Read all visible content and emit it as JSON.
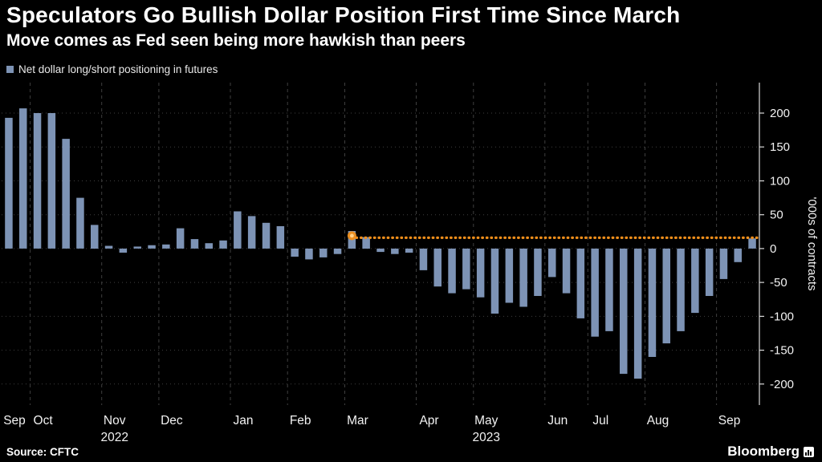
{
  "header": {
    "title": "Speculators Go Bullish Dollar Position First Time Since March",
    "subtitle": "Move comes as Fed seen being more hawkish than peers"
  },
  "legend": {
    "label": "Net dollar long/short positioning in futures",
    "swatch_color": "#7d93b5"
  },
  "chart_data": {
    "type": "bar",
    "title": "Speculators Go Bullish Dollar Position First Time Since March",
    "subtitle": "Move comes as Fed seen being more hawkish than peers",
    "series_label": "Net dollar long/short positioning in futures",
    "unit_label": "'000s of contracts",
    "ylim": [
      -231,
      245
    ],
    "yticks": [
      200,
      150,
      100,
      50,
      0,
      -50,
      -100,
      -150,
      -200
    ],
    "bar_color": "#7d93b5",
    "grid_color": "#3f3f3f",
    "axis_color": "#d9d9d9",
    "grid": true,
    "legend_position": "top-left",
    "values": [
      193,
      207,
      200,
      200,
      162,
      75,
      35,
      4,
      -6,
      3,
      5,
      6,
      30,
      14,
      8,
      12,
      55,
      48,
      38,
      33,
      -12,
      -16,
      -13,
      -8,
      26,
      17,
      -5,
      -8,
      -6,
      -32,
      -56,
      -66,
      -60,
      -72,
      -96,
      -80,
      -86,
      -70,
      -42,
      -66,
      -103,
      -130,
      -122,
      -185,
      -192,
      -160,
      -140,
      -122,
      -95,
      -70,
      -45,
      -20,
      15
    ],
    "bar_width": 9.5,
    "months": [
      {
        "label": "Sep",
        "start": 0
      },
      {
        "label": "Oct",
        "start": 2
      },
      {
        "label": "Nov",
        "start": 7,
        "year": "2022"
      },
      {
        "label": "Dec",
        "start": 11
      },
      {
        "label": "Jan",
        "start": 16
      },
      {
        "label": "Feb",
        "start": 20
      },
      {
        "label": "Mar",
        "start": 24
      },
      {
        "label": "Apr",
        "start": 29
      },
      {
        "label": "May",
        "start": 33,
        "year": "2023"
      },
      {
        "label": "Jun",
        "start": 38
      },
      {
        "label": "Jul",
        "start": 41
      },
      {
        "label": "Aug",
        "start": 45
      },
      {
        "label": "Sep",
        "start": 50
      }
    ],
    "reference_line": {
      "value": 16,
      "marker_value": 19,
      "start_index": 24,
      "color": "#ef8e1b",
      "style": "dotted"
    }
  },
  "footer": {
    "source": "Source: CFTC",
    "brand": "Bloomberg"
  }
}
